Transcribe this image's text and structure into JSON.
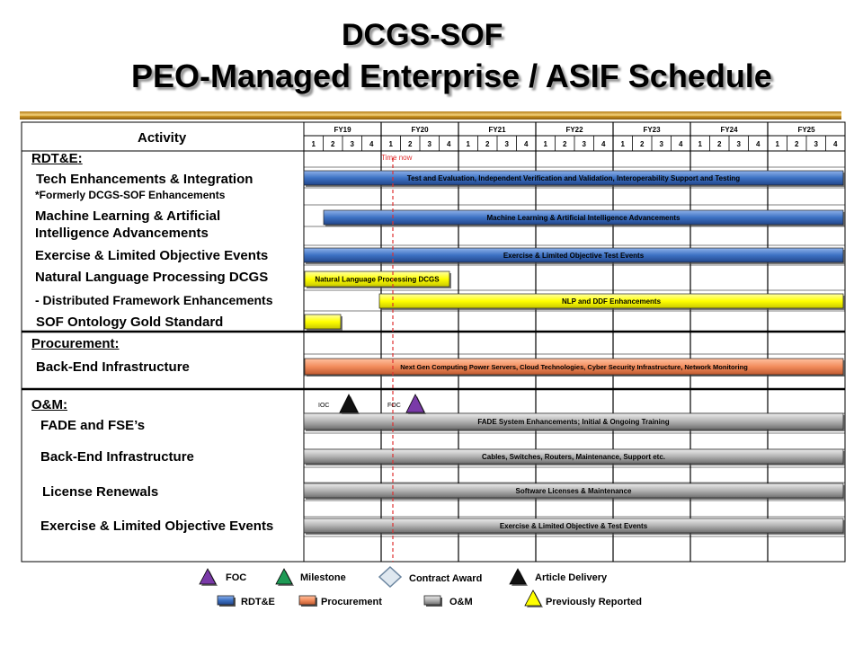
{
  "title": {
    "line1": "DCGS-SOF",
    "line2": "PEO-Managed Enterprise / ASIF Schedule"
  },
  "header": {
    "activity_label": "Activity",
    "quarters": [
      "1",
      "2",
      "3",
      "4"
    ]
  },
  "fiscal_years": [
    "FY19",
    "FY20",
    "FY21",
    "FY22",
    "FY23",
    "FY24",
    "FY25"
  ],
  "time_now_label": "Time now",
  "colors": {
    "rdte": "#3d72c4",
    "procurement": "#f28c5c",
    "om": "#a9a9a9",
    "previously_reported": "#ffff00",
    "time_now": "#e03030",
    "foc": "#7a3aa8",
    "milestone": "#1e9a55",
    "article_delivery": "#111111"
  },
  "sections": {
    "rdte": "RDT&E",
    "procurement": "Procurement",
    "om": "O&M"
  },
  "activities": {
    "tech": "Tech Enhancements & Integration",
    "tech_note": "*Formerly DCGS-SOF Enhancements",
    "ml_1": "Machine Learning & Artificial",
    "ml_2": "Intelligence Advancements",
    "exercise_rdte": "Exercise & Limited Objective Events",
    "nlp": "Natural Language Processing DCGS",
    "ddf": " - Distributed Framework Enhancements",
    "ontology": "SOF Ontology Gold Standard",
    "backend_proc": "Back-End Infrastructure",
    "fade": "FADE and FSE’s",
    "backend_om": "Back-End Infrastructure",
    "license": "License Renewals",
    "exercise_om": "Exercise & Limited Objective Events"
  },
  "bars": {
    "tech": "Test and Evaluation, Independent Verification and Validation, Interoperability Support and Testing",
    "ml": "Machine Learning & Artificial Intelligence Advancements",
    "exercise_rdte": "Exercise & Limited Objective Test Events",
    "nlp": "Natural Language Processing DCGS",
    "nlp_ddf": "NLP and DDF Enhancements",
    "ontology": "",
    "backend_proc": "Next Gen Computing Power Servers, Cloud Technologies, Cyber Security Infrastructure, Network Monitoring",
    "fade": "FADE System Enhancements; Initial & Ongoing Training",
    "backend_om": "Cables, Switches, Routers, Maintenance, Support etc.",
    "license": "Software Licenses & Maintenance",
    "exercise_om": "Exercise & Limited Objective & Test Events"
  },
  "milestones": {
    "ioc": "IOC",
    "foc": "FOC"
  },
  "legend": {
    "foc": "FOC",
    "milestone": "Milestone",
    "contract_award": "Contract Award",
    "article_delivery": "Article Delivery",
    "rdte": "RDT&E",
    "procurement": "Procurement",
    "om": "O&M",
    "previously_reported": "Previously Reported"
  }
}
